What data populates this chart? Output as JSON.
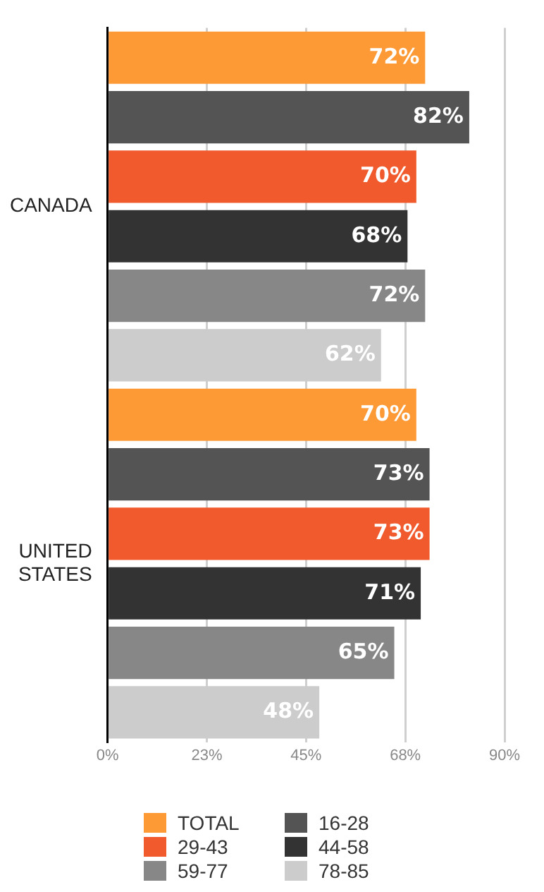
{
  "chart_data": {
    "type": "bar",
    "orientation": "horizontal",
    "categories": [
      "CANADA",
      "UNITED STATES"
    ],
    "series": [
      {
        "name": "TOTAL",
        "color": "#fd9a35",
        "values": [
          72,
          70
        ],
        "value_labels": [
          "72%",
          "70%"
        ]
      },
      {
        "name": "16-28",
        "color": "#545454",
        "values": [
          82,
          73
        ],
        "value_labels": [
          "82%",
          "73%"
        ]
      },
      {
        "name": "29-43",
        "color": "#f05a2c",
        "values": [
          70,
          73
        ],
        "value_labels": [
          "70%",
          "73%"
        ]
      },
      {
        "name": "44-58",
        "color": "#333333",
        "values": [
          68,
          71
        ],
        "value_labels": [
          "68%",
          "71%"
        ]
      },
      {
        "name": "59-77",
        "color": "#878787",
        "values": [
          72,
          65
        ],
        "value_labels": [
          "72%",
          "65%"
        ]
      },
      {
        "name": "78-85",
        "color": "#cccccc",
        "values": [
          62,
          48
        ],
        "value_labels": [
          "62%",
          "48%"
        ]
      }
    ],
    "xlim": [
      0,
      90
    ],
    "xticks": [
      {
        "value": 0,
        "label": "0%"
      },
      {
        "value": 22.5,
        "label": "23%"
      },
      {
        "value": 45,
        "label": "45%"
      },
      {
        "value": 67.5,
        "label": "68%"
      },
      {
        "value": 90,
        "label": "90%"
      }
    ],
    "grid": "x",
    "legend": "bottom"
  }
}
